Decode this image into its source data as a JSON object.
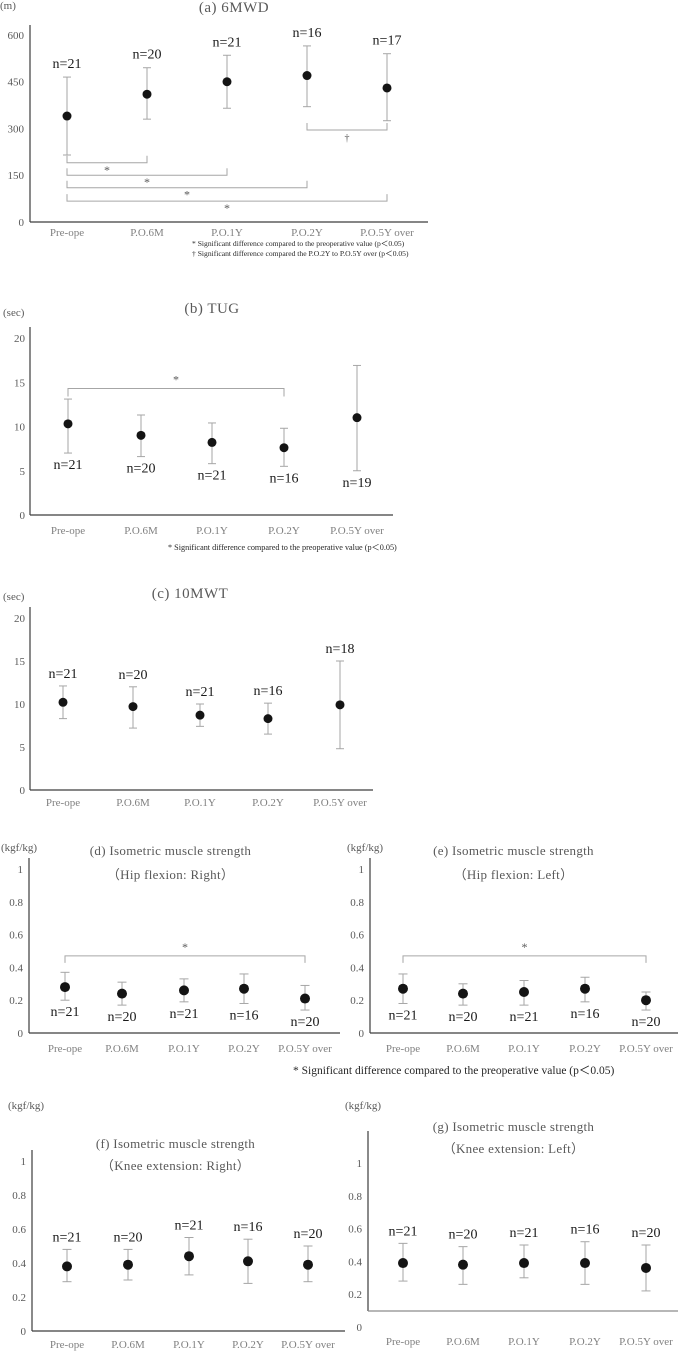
{
  "shared_footnote": "* Significant difference compared to the preoperative value (p＜0.05)",
  "chart_data": [
    {
      "key": "a",
      "type": "scatter-errorbar",
      "title": "(a) 6MWD",
      "ylabel": "(m)",
      "categories": [
        "Pre-ope",
        "P.O.6M",
        "P.O.1Y",
        "P.O.2Y",
        "P.O.5Y over"
      ],
      "n_labels": [
        "n=21",
        "n=20",
        "n=21",
        "n=16",
        "n=17"
      ],
      "values": [
        340,
        410,
        450,
        470,
        430
      ],
      "err_low": [
        215,
        330,
        365,
        370,
        325
      ],
      "err_high": [
        465,
        495,
        535,
        565,
        540
      ],
      "ylim": [
        0,
        600
      ],
      "yticks": [
        "0",
        "150",
        "300",
        "450",
        "600"
      ],
      "brackets": [
        {
          "from": 0,
          "to": 1,
          "label": "*",
          "y_value": 190
        },
        {
          "from": 0,
          "to": 2,
          "label": "*",
          "y_value": 150
        },
        {
          "from": 0,
          "to": 3,
          "label": "*",
          "y_value": 110
        },
        {
          "from": 0,
          "to": 4,
          "label": "*",
          "y_value": 67
        },
        {
          "from": 3,
          "to": 4,
          "label": "†",
          "y_value": 295
        }
      ],
      "footnotes": [
        "* Significant difference compared to the preoperative value (p＜0.05)",
        "† Significant difference compared the P.O.2Y to P.O.5Y over (p＜0.05)"
      ]
    },
    {
      "key": "b",
      "type": "scatter-errorbar",
      "title": "(b) TUG",
      "ylabel": "(sec)",
      "categories": [
        "Pre-ope",
        "P.O.6M",
        "P.O.1Y",
        "P.O.2Y",
        "P.O.5Y over"
      ],
      "n_labels": [
        "n=21",
        "n=20",
        "n=21",
        "n=16",
        "n=19"
      ],
      "values": [
        10.3,
        9.0,
        8.2,
        7.6,
        11.0
      ],
      "err_low": [
        7.0,
        6.6,
        5.8,
        5.5,
        5.0
      ],
      "err_high": [
        13.1,
        11.3,
        10.4,
        9.8,
        16.9
      ],
      "ylim": [
        0,
        20
      ],
      "yticks": [
        "0",
        "5",
        "10",
        "15",
        "20"
      ],
      "brackets": [
        {
          "from": 0,
          "to": 3,
          "label": "*",
          "y_value": 14.3
        }
      ],
      "footnotes": [
        "* Significant difference compared to the preoperative value (p＜0.05)"
      ]
    },
    {
      "key": "c",
      "type": "scatter-errorbar",
      "title": "(c) 10MWT",
      "ylabel": "(sec)",
      "categories": [
        "Pre-ope",
        "P.O.6M",
        "P.O.1Y",
        "P.O.2Y",
        "P.O.5Y over"
      ],
      "n_labels": [
        "n=21",
        "n=20",
        "n=21",
        "n=16",
        "n=18"
      ],
      "values": [
        10.2,
        9.7,
        8.7,
        8.3,
        9.9
      ],
      "err_low": [
        8.3,
        7.2,
        7.4,
        6.5,
        4.8
      ],
      "err_high": [
        12.1,
        12.0,
        10.0,
        10.1,
        15.0
      ],
      "ylim": [
        0,
        20
      ],
      "yticks": [
        "0",
        "5",
        "10",
        "15",
        "20"
      ],
      "brackets": [],
      "footnotes": []
    },
    {
      "key": "d",
      "type": "scatter-errorbar",
      "title": "(d) Isometric muscle strength",
      "subtitle": "（Hip flexion: Right）",
      "ylabel": "(kgf/kg)",
      "categories": [
        "Pre-ope",
        "P.O.6M",
        "P.O.1Y",
        "P.O.2Y",
        "P.O.5Y over"
      ],
      "n_labels": [
        "n=21",
        "n=20",
        "n=21",
        "n=16",
        "n=20"
      ],
      "values": [
        0.28,
        0.24,
        0.26,
        0.27,
        0.21
      ],
      "err_low": [
        0.2,
        0.17,
        0.19,
        0.18,
        0.14
      ],
      "err_high": [
        0.37,
        0.31,
        0.33,
        0.36,
        0.29
      ],
      "ylim": [
        0,
        1
      ],
      "yticks": [
        "0",
        "0.2",
        "0.4",
        "0.6",
        "0.8",
        "1"
      ],
      "brackets": [
        {
          "from": 0,
          "to": 4,
          "label": "*",
          "y_value": 0.47
        }
      ],
      "footnotes": []
    },
    {
      "key": "e",
      "type": "scatter-errorbar",
      "title": "(e) Isometric muscle strength",
      "subtitle": "（Hip flexion: Left）",
      "ylabel": "(kgf/kg)",
      "categories": [
        "Pre-ope",
        "P.O.6M",
        "P.O.1Y",
        "P.O.2Y",
        "P.O.5Y over"
      ],
      "n_labels": [
        "n=21",
        "n=20",
        "n=21",
        "n=16",
        "n=20"
      ],
      "values": [
        0.27,
        0.24,
        0.25,
        0.27,
        0.2
      ],
      "err_low": [
        0.18,
        0.17,
        0.17,
        0.19,
        0.14
      ],
      "err_high": [
        0.36,
        0.3,
        0.32,
        0.34,
        0.25
      ],
      "ylim": [
        0,
        1
      ],
      "yticks": [
        "0",
        "0.2",
        "0.4",
        "0.6",
        "0.8",
        "1"
      ],
      "brackets": [
        {
          "from": 0,
          "to": 4,
          "label": "*",
          "y_value": 0.47
        }
      ],
      "footnotes": []
    },
    {
      "key": "f",
      "type": "scatter-errorbar",
      "title": "(f) Isometric muscle strength",
      "subtitle": "（Knee extension: Right）",
      "ylabel": "(kgf/kg)",
      "categories": [
        "Pre-ope",
        "P.O.6M",
        "P.O.1Y",
        "P.O.2Y",
        "P.O.5Y over"
      ],
      "n_labels": [
        "n=21",
        "n=20",
        "n=21",
        "n=16",
        "n=20"
      ],
      "values": [
        0.38,
        0.39,
        0.44,
        0.41,
        0.39
      ],
      "err_low": [
        0.29,
        0.3,
        0.33,
        0.28,
        0.29
      ],
      "err_high": [
        0.48,
        0.48,
        0.55,
        0.54,
        0.5
      ],
      "ylim": [
        0,
        1
      ],
      "yticks": [
        "0",
        "0.2",
        "0.4",
        "0.6",
        "0.8",
        "1"
      ],
      "brackets": [],
      "footnotes": []
    },
    {
      "key": "g",
      "type": "scatter-errorbar",
      "title": "(g) Isometric muscle strength",
      "subtitle": "（Knee extension: Left）",
      "ylabel": "(kgf/kg)",
      "categories": [
        "Pre-ope",
        "P.O.6M",
        "P.O.1Y",
        "P.O.2Y",
        "P.O.5Y over"
      ],
      "n_labels": [
        "n=21",
        "n=20",
        "n=21",
        "n=16",
        "n=20"
      ],
      "values": [
        0.39,
        0.38,
        0.39,
        0.39,
        0.36
      ],
      "err_low": [
        0.28,
        0.26,
        0.3,
        0.26,
        0.22
      ],
      "err_high": [
        0.51,
        0.49,
        0.5,
        0.52,
        0.5
      ],
      "ylim": [
        0,
        1
      ],
      "yticks": [
        "0",
        "0.2",
        "0.4",
        "0.6",
        "0.8",
        "1"
      ],
      "brackets": [],
      "footnotes": []
    }
  ]
}
